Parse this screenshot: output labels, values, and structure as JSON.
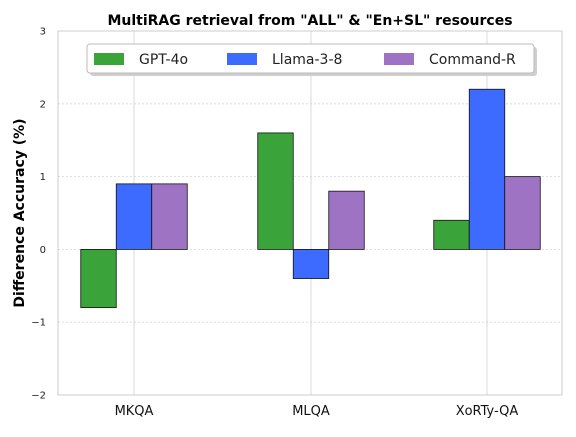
{
  "chart_data": {
    "type": "bar",
    "title": "MultiRAG retrieval from \"ALL\" & \"En+SL\" resources",
    "xlabel": "",
    "ylabel": "Difference Accuracy (%)",
    "categories": [
      "MKQA",
      "MLQA",
      "XoRTy-QA"
    ],
    "series": [
      {
        "name": "GPT-4o",
        "values": [
          -0.8,
          1.6,
          0.4
        ],
        "color": "#3aa33a"
      },
      {
        "name": "Llama-3-8",
        "values": [
          0.9,
          -0.4,
          2.2
        ],
        "color": "#3d6bff"
      },
      {
        "name": "Command-R",
        "values": [
          0.9,
          0.8,
          1.0
        ],
        "color": "#9f73c4"
      }
    ],
    "ylim": [
      -2,
      3
    ],
    "yticks": [
      -2,
      -1,
      0,
      1,
      2,
      3
    ],
    "ytick_labels": [
      "−2",
      "−1",
      "0",
      "1",
      "2",
      "3"
    ],
    "grid": true,
    "legend_position": "top-center"
  }
}
